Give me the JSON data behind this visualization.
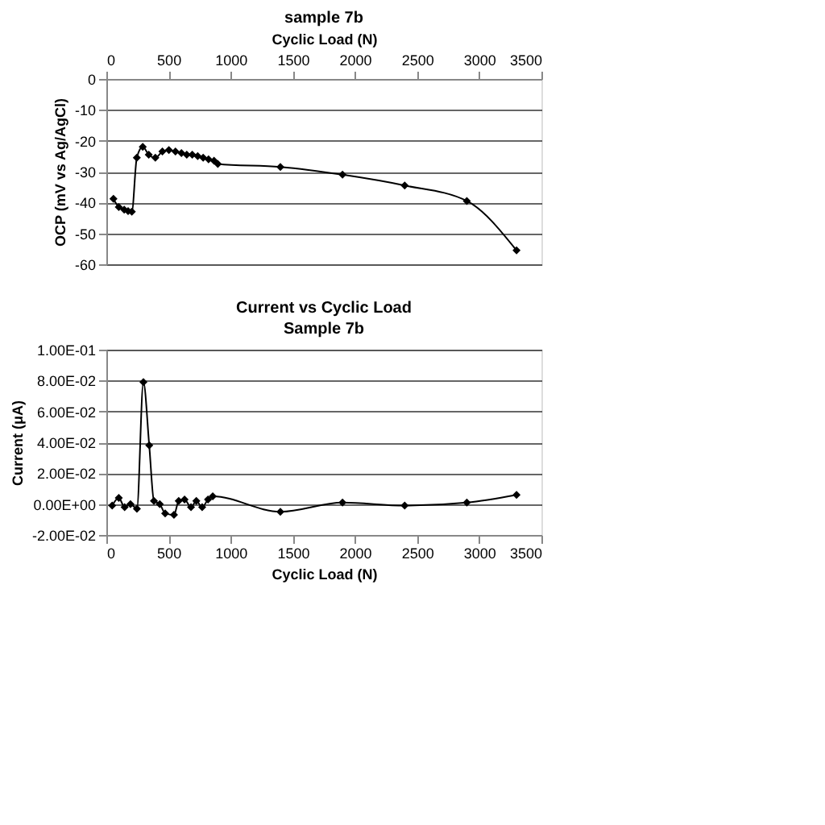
{
  "chart_data": [
    {
      "type": "line",
      "title": "sample 7b",
      "xlabel": "Cyclic Load (N)",
      "ylabel": "OCP (mV vs Ag/AgCl)",
      "x": [
        57,
        100,
        144,
        175,
        205,
        245,
        293,
        341,
        394,
        451,
        503,
        556,
        604,
        647,
        691,
        735,
        779,
        822,
        866,
        897,
        1400,
        1900,
        2400,
        2900,
        3300
      ],
      "series": [
        {
          "color": "#000000",
          "values": [
            -38.8,
            -41.5,
            -42.3,
            -42.8,
            -43,
            -25.5,
            -22,
            -24.5,
            -25.5,
            -23.5,
            -23,
            -23.5,
            -24,
            -24.5,
            -24.5,
            -25,
            -25.5,
            -26,
            -26.5,
            -27.5,
            -28.5,
            -31,
            -34.5,
            -39.5,
            -55.5
          ]
        }
      ],
      "xlim": [
        0,
        3500
      ],
      "xticks": [
        0,
        500,
        1000,
        1500,
        2000,
        2500,
        3000,
        3500
      ],
      "ylim": [
        -60,
        0
      ],
      "yticks": [
        -60,
        -50,
        -40,
        -30,
        -20,
        -10,
        0
      ],
      "grid": "y",
      "marker": "diamond",
      "line_style": "solid"
    },
    {
      "type": "line",
      "title": "Current vs Cyclic Load",
      "subtitle": "Sample 7b",
      "xlabel": "Cyclic Load (N)",
      "ylabel": "Current (μA)",
      "x": [
        47,
        100,
        147,
        194,
        246,
        298,
        345,
        383,
        430,
        473,
        544,
        582,
        629,
        681,
        724,
        771,
        818,
        856,
        1400,
        1900,
        2400,
        2900,
        3300
      ],
      "series": [
        {
          "color": "#000000",
          "values": [
            -0.001,
            0.004,
            -0.002,
            0.0,
            -0.003,
            0.079,
            0.038,
            0.002,
            0.0,
            -0.006,
            -0.007,
            0.002,
            0.003,
            -0.002,
            0.002,
            -0.002,
            0.003,
            0.005,
            -0.005,
            0.001,
            -0.001,
            0.001,
            0.006
          ]
        }
      ],
      "xlim": [
        0,
        3500
      ],
      "xticks": [
        0,
        500,
        1000,
        1500,
        2000,
        2500,
        3000,
        3500
      ],
      "ylim": [
        -0.02,
        0.1
      ],
      "yticks": [
        {
          "value": -0.02,
          "label": "-2.00E-02"
        },
        {
          "value": 0,
          "label": "0.00E+00"
        },
        {
          "value": 0.02,
          "label": "2.00E-02"
        },
        {
          "value": 0.04,
          "label": "4.00E-02"
        },
        {
          "value": 0.06,
          "label": "6.00E-02"
        },
        {
          "value": 0.08,
          "label": "8.00E-02"
        },
        {
          "value": 0.1,
          "label": "1.00E-01"
        }
      ],
      "grid": "y",
      "marker": "diamond",
      "line_style": "solid"
    }
  ]
}
